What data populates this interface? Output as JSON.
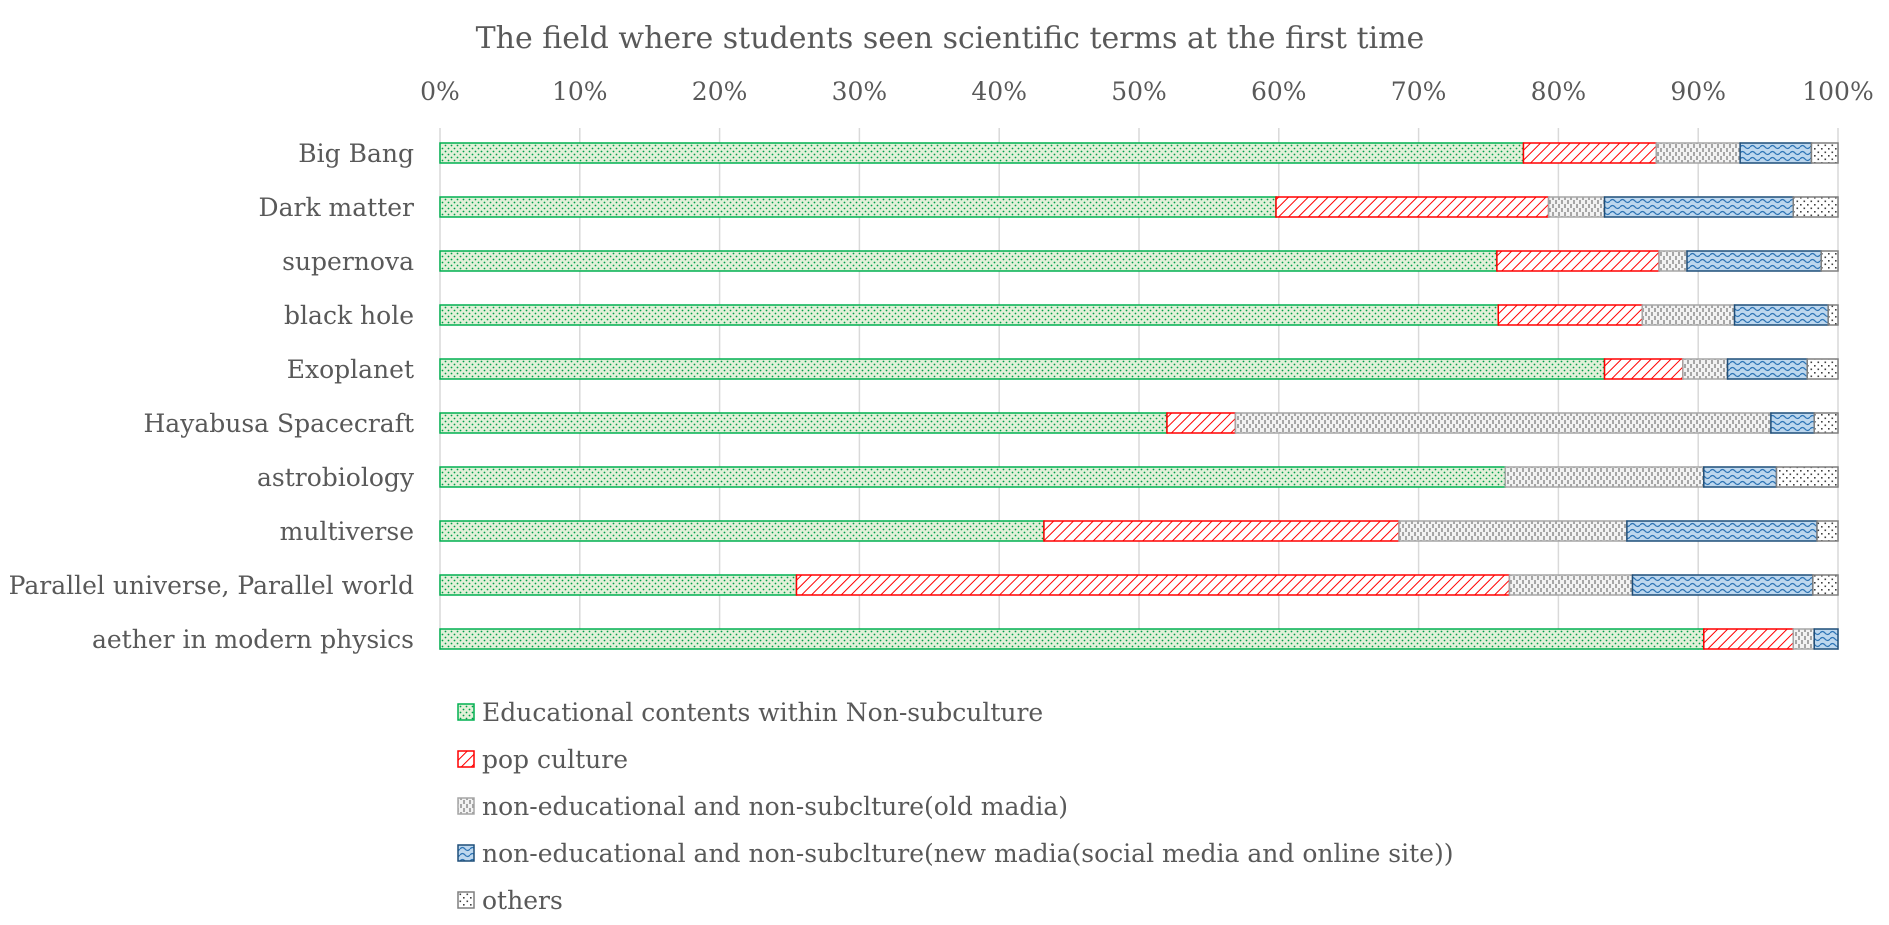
{
  "chart_data": {
    "type": "bar",
    "orientation": "horizontal",
    "stacking": "percent",
    "title": "The field where students seen scientific terms at the first time",
    "x_axis_position": "top",
    "xlim": [
      0,
      100
    ],
    "x_ticks": [
      0,
      10,
      20,
      30,
      40,
      50,
      60,
      70,
      80,
      90,
      100
    ],
    "x_tick_labels": [
      "0%",
      "10%",
      "20%",
      "30%",
      "40%",
      "50%",
      "60%",
      "70%",
      "80%",
      "90%",
      "100%"
    ],
    "grid": true,
    "legend_position": "bottom",
    "categories": [
      "Big Bang",
      "Dark matter",
      "supernova",
      "black hole",
      "Exoplanet",
      "Hayabusa Spacecraft",
      "astrobiology",
      "multiverse",
      "Parallel universe, Parallel world",
      "aether in modern physics"
    ],
    "series": [
      {
        "name": "Educational contents within Non-subculture",
        "pattern": "dots-fine",
        "border_color": "#00b050",
        "fill_color": "#e2f0d9",
        "values": [
          77.5,
          59.8,
          75.6,
          75.7,
          83.3,
          52.0,
          76.2,
          43.2,
          25.5,
          90.4
        ]
      },
      {
        "name": "pop culture",
        "pattern": "diagonal",
        "border_color": "#ff0000",
        "fill_color": "#ffffff",
        "values": [
          9.5,
          19.5,
          11.6,
          10.3,
          5.6,
          4.9,
          0,
          25.4,
          51.0,
          6.4
        ]
      },
      {
        "name": "non-educational and non-subclture(old  madia)",
        "pattern": "vertical-dash",
        "border_color": "#a6a6a6",
        "fill_color": "#f2f2f2",
        "values": [
          6.0,
          4.0,
          2.0,
          6.6,
          3.2,
          38.3,
          14.2,
          16.3,
          8.8,
          1.5
        ]
      },
      {
        "name": "non-educational and non-subclture(new madia(social media and online site))",
        "pattern": "wave",
        "border_color": "#1f4e79",
        "fill_color": "#bdd7ee",
        "values": [
          5.1,
          13.5,
          9.6,
          6.7,
          5.7,
          3.1,
          5.2,
          13.6,
          12.9,
          1.7
        ]
      },
      {
        "name": "others",
        "pattern": "dots-coarse",
        "border_color": "#7f7f7f",
        "fill_color": "#ffffff",
        "values": [
          1.9,
          3.2,
          1.2,
          0.7,
          2.2,
          1.7,
          4.4,
          1.5,
          1.8,
          0
        ]
      }
    ]
  }
}
